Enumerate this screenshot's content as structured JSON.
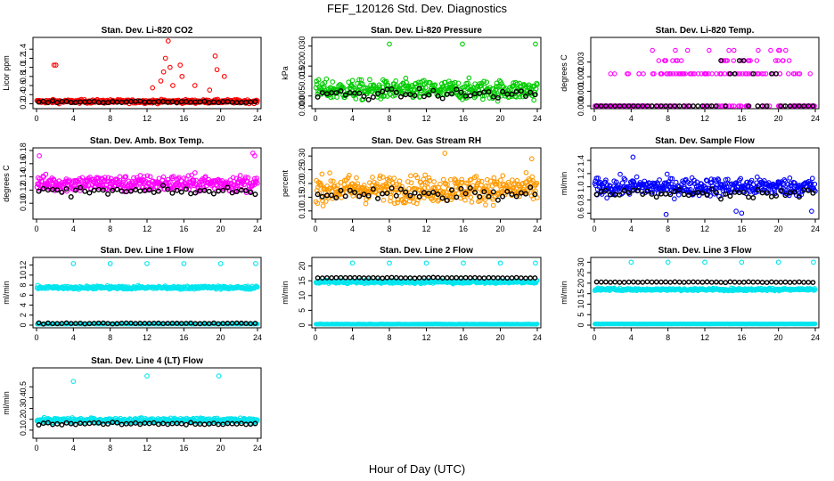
{
  "figure": {
    "title": "FEF_120126  Std. Dev. Diagnostics",
    "xlabel": "Hour of Day (UTC)"
  },
  "chart_data": [
    {
      "type": "scatter",
      "title": "Stan. Dev. Li-820 CO2",
      "ylabel": "Licor ppm",
      "color": "#ff0000",
      "xlim": [
        0,
        24
      ],
      "ylim": [
        0.15,
        1.6
      ],
      "xticks": [
        "0",
        "4",
        "8",
        "12",
        "16",
        "20",
        "24"
      ],
      "yticks": [
        "0.2",
        "0.4",
        "0.6",
        "0.8",
        "1.0",
        "1.2",
        "1.4"
      ],
      "base": 0.25,
      "spread": 0.04,
      "mean_base": 0.24,
      "outliers": [
        [
          1.9,
          1.05
        ],
        [
          2.1,
          1.05
        ],
        [
          13.5,
          0.7
        ],
        [
          13.8,
          0.9
        ],
        [
          14.0,
          1.2
        ],
        [
          14.3,
          1.58
        ],
        [
          14.5,
          1.0
        ],
        [
          15.6,
          1.05
        ],
        [
          15.8,
          0.8
        ],
        [
          17.2,
          0.6
        ],
        [
          18.8,
          0.5
        ],
        [
          19.4,
          1.25
        ],
        [
          19.6,
          0.95
        ],
        [
          20.4,
          0.8
        ],
        [
          12.6,
          0.55
        ],
        [
          14.8,
          0.6
        ]
      ],
      "series": [
        {
          "name": "",
          "role": "all"
        },
        {
          "name": "",
          "role": "hourly"
        }
      ]
    },
    {
      "type": "scatter",
      "title": "Stan. Dev. Li-820 Pressure",
      "ylabel": "kPa",
      "color": "#00cc00",
      "xlim": [
        0,
        24
      ],
      "ylim": [
        0,
        0.033
      ],
      "xticks": [
        "0",
        "4",
        "8",
        "12",
        "16",
        "20",
        "24"
      ],
      "yticks": [
        "0.000",
        "0.005",
        "0.015",
        "0.020",
        "0.030"
      ],
      "base": 0.008,
      "spread": 0.005,
      "mean_base": 0.006,
      "outliers": [
        [
          8,
          0.031
        ],
        [
          15.9,
          0.031
        ],
        [
          23.8,
          0.031
        ]
      ],
      "series": [
        {
          "name": "",
          "role": "all"
        },
        {
          "name": "",
          "role": "hourly"
        }
      ]
    },
    {
      "type": "scatter",
      "title": "Stan. Dev. Li-820 Temp.",
      "ylabel": "degrees C",
      "color": "#ff00ff",
      "xlim": [
        0,
        24
      ],
      "ylim": [
        0,
        0.0045
      ],
      "xticks": [
        "0",
        "4",
        "8",
        "12",
        "16",
        "20",
        "24"
      ],
      "yticks": [
        "0.000",
        "0.001",
        "0.002",
        "0.003"
      ],
      "levels": [
        0.0,
        0.0022,
        0.0031,
        0.0038
      ],
      "series": [
        {
          "name": "",
          "role": "all"
        },
        {
          "name": "",
          "role": "hourly"
        }
      ]
    },
    {
      "type": "scatter",
      "title": "Stan. Dev. Amb. Box Temp.",
      "ylabel": "degrees C",
      "color": "#ff00ff",
      "xlim": [
        0,
        24
      ],
      "ylim": [
        0.08,
        0.18
      ],
      "xticks": [
        "0",
        "4",
        "8",
        "12",
        "16",
        "20",
        "24"
      ],
      "yticks": [
        "0.10",
        "0.12",
        "0.14",
        "0.16",
        "0.18"
      ],
      "base": 0.13,
      "spread": 0.013,
      "mean_base": 0.118,
      "outliers": [
        [
          23.5,
          0.176
        ],
        [
          23.7,
          0.172
        ],
        [
          0.3,
          0.172
        ]
      ],
      "series": [
        {
          "name": "",
          "role": "all"
        },
        {
          "name": "",
          "role": "hourly"
        }
      ]
    },
    {
      "type": "scatter",
      "title": "Stan. Dev. Gas Stream RH",
      "ylabel": "percent",
      "color": "#ff9900",
      "xlim": [
        0,
        24
      ],
      "ylim": [
        0.08,
        0.32
      ],
      "xticks": [
        "0",
        "4",
        "8",
        "12",
        "16",
        "20",
        "24"
      ],
      "yticks": [
        "0.10",
        "0.15",
        "0.20",
        "0.25",
        "0.30"
      ],
      "base": 0.18,
      "spread": 0.05,
      "mean_base": 0.16,
      "outliers": [
        [
          14.0,
          0.31
        ],
        [
          23.4,
          0.29
        ]
      ],
      "series": [
        {
          "name": "",
          "role": "all"
        },
        {
          "name": "",
          "role": "hourly"
        }
      ]
    },
    {
      "type": "scatter",
      "title": "Stan. Dev. Sample Flow",
      "ylabel": "ml/min",
      "color": "#0000ff",
      "xlim": [
        0,
        24
      ],
      "ylim": [
        0.55,
        1.55
      ],
      "xticks": [
        "0",
        "4",
        "8",
        "12",
        "16",
        "20",
        "24"
      ],
      "yticks": [
        "0.6",
        "0.8",
        "1.0",
        "1.2",
        "1.4"
      ],
      "base": 1.0,
      "spread": 0.14,
      "mean_base": 0.9,
      "outliers": [
        [
          7.8,
          0.58
        ],
        [
          15.4,
          0.63
        ],
        [
          16.0,
          0.6
        ],
        [
          23.6,
          0.63
        ],
        [
          4.2,
          1.45
        ]
      ],
      "series": [
        {
          "name": "",
          "role": "all"
        },
        {
          "name": "",
          "role": "hourly"
        }
      ]
    },
    {
      "type": "scatter",
      "title": "Stan. Dev. Line 1 Flow",
      "ylabel": "ml/min",
      "color": "#00e5ee",
      "xlim": [
        0,
        24
      ],
      "ylim": [
        0,
        13
      ],
      "xticks": [
        "0",
        "4",
        "8",
        "12",
        "16",
        "20",
        "24"
      ],
      "yticks": [
        "0",
        "2",
        "4",
        "6",
        "8",
        "10",
        "12"
      ],
      "bands": [
        7.5,
        0.2
      ],
      "band_spread": 0.35,
      "mean_base": 0.35,
      "outliers": [
        [
          4,
          12.3
        ],
        [
          8,
          12.3
        ],
        [
          12,
          12.3
        ],
        [
          16,
          12.3
        ],
        [
          20,
          12.3
        ],
        [
          23.8,
          12.3
        ]
      ],
      "series": [
        {
          "name": "",
          "role": "all"
        },
        {
          "name": "",
          "role": "hourly"
        }
      ]
    },
    {
      "type": "scatter",
      "title": "Stan. Dev. Line 2 Flow",
      "ylabel": "ml/min",
      "color": "#00e5ee",
      "xlim": [
        0,
        24
      ],
      "ylim": [
        0,
        22
      ],
      "xticks": [
        "0",
        "4",
        "8",
        "12",
        "16",
        "20",
        "24"
      ],
      "yticks": [
        "0",
        "5",
        "10",
        "15",
        "20"
      ],
      "bands": [
        14.6,
        0.3
      ],
      "band_spread": 0.5,
      "mean_base": 16.0,
      "outliers": [
        [
          4,
          21
        ],
        [
          8,
          21
        ],
        [
          12,
          21
        ],
        [
          16,
          21
        ],
        [
          20,
          21
        ],
        [
          23.8,
          21
        ]
      ],
      "series": [
        {
          "name": "",
          "role": "all"
        },
        {
          "name": "",
          "role": "hourly"
        }
      ]
    },
    {
      "type": "scatter",
      "title": "Stan. Dev. Line 3 Flow",
      "ylabel": "ml/min",
      "color": "#00e5ee",
      "xlim": [
        0,
        24
      ],
      "ylim": [
        0,
        31
      ],
      "xticks": [
        "0",
        "4",
        "8",
        "12",
        "16",
        "20",
        "24"
      ],
      "yticks": [
        "0",
        "5",
        "10",
        "15",
        "20",
        "25",
        "30"
      ],
      "bands": [
        17.0,
        0.5
      ],
      "band_spread": 0.6,
      "mean_base": 20.5,
      "outliers": [
        [
          4,
          30
        ],
        [
          8,
          30
        ],
        [
          12,
          30
        ],
        [
          16,
          30
        ],
        [
          20,
          30
        ],
        [
          23.8,
          30
        ]
      ],
      "series": [
        {
          "name": "",
          "role": "all"
        },
        {
          "name": "",
          "role": "hourly"
        }
      ]
    },
    {
      "type": "scatter",
      "title": "Stan. Dev. Line 4 (LT) Flow",
      "ylabel": "ml/min",
      "color": "#00e5ee",
      "xlim": [
        0,
        24
      ],
      "ylim": [
        0.05,
        0.65
      ],
      "xticks": [
        "0",
        "4",
        "8",
        "12",
        "16",
        "20",
        "24"
      ],
      "yticks": [
        "0.1",
        "0.2",
        "0.3",
        "0.4",
        "0.5"
      ],
      "base": 0.19,
      "spread": 0.022,
      "mean_base": 0.16,
      "outliers": [
        [
          4,
          0.55
        ],
        [
          12,
          0.6
        ],
        [
          19.8,
          0.6
        ]
      ],
      "series": [
        {
          "name": "",
          "role": "all"
        },
        {
          "name": "",
          "role": "hourly"
        }
      ]
    }
  ]
}
